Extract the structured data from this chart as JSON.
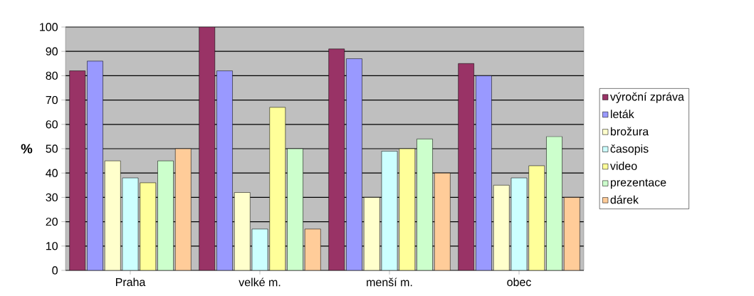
{
  "chart_data": {
    "type": "bar",
    "ylabel": "%",
    "categories": [
      "Praha",
      "velké m.",
      "menší m.",
      "obec"
    ],
    "series": [
      {
        "name": "výroční zpráva",
        "color": "#993366",
        "values": [
          82,
          100,
          91,
          85
        ]
      },
      {
        "name": "leták",
        "color": "#9999ff",
        "values": [
          86,
          82,
          87,
          80
        ]
      },
      {
        "name": "brožura",
        "color": "#ffffcc",
        "values": [
          45,
          32,
          30,
          35
        ]
      },
      {
        "name": "časopis",
        "color": "#ccffff",
        "values": [
          38,
          17,
          49,
          38
        ]
      },
      {
        "name": "video",
        "color": "#ffff99",
        "values": [
          36,
          67,
          50,
          43
        ]
      },
      {
        "name": "prezentace",
        "color": "#ccffcc",
        "values": [
          45,
          50,
          54,
          55
        ]
      },
      {
        "name": "dárek",
        "color": "#ffcc99",
        "values": [
          50,
          17,
          40,
          30
        ]
      }
    ],
    "ylim": [
      0,
      100
    ],
    "yticks": [
      0,
      10,
      20,
      30,
      40,
      50,
      60,
      70,
      80,
      90,
      100
    ],
    "grid": "y",
    "legend": "right"
  }
}
